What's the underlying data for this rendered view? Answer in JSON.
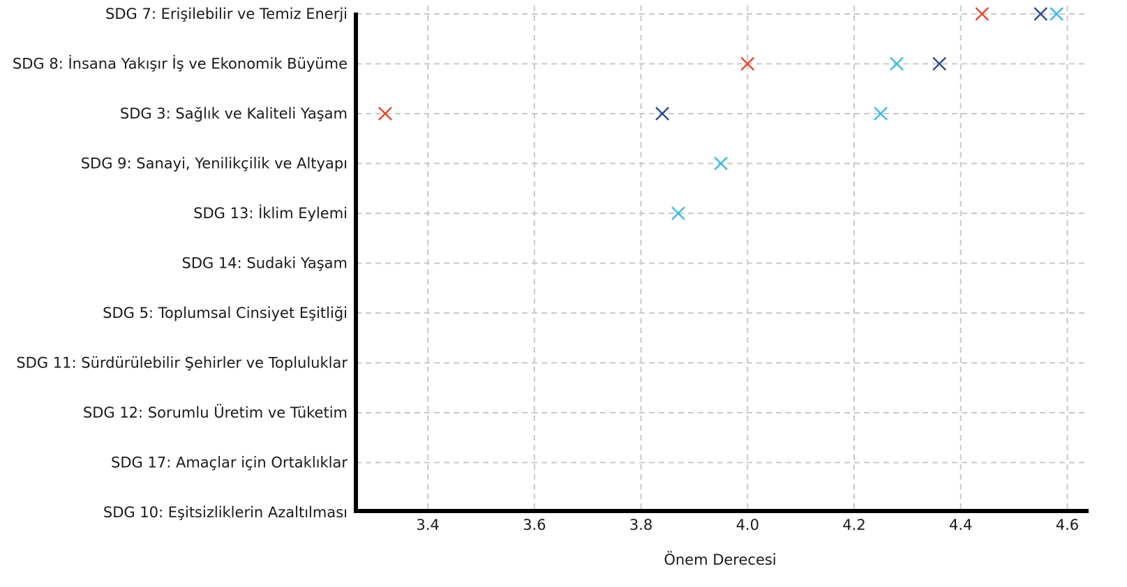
{
  "chart_data": {
    "type": "scatter",
    "title": "",
    "xlabel": "Önem Derecesi",
    "ylabel": "",
    "xlim": [
      3.265,
      4.64
    ],
    "xticks": [
      "3.4",
      "3.6",
      "3.8",
      "4.0",
      "4.2",
      "4.4",
      "4.6"
    ],
    "xtick_values": [
      3.4,
      3.6,
      3.8,
      4.0,
      4.2,
      4.4,
      4.6
    ],
    "grid": true,
    "marker": "x",
    "categories": [
      "SDG 7: Erişilebilir ve Temiz Enerji",
      "SDG 8: İnsana Yakışır İş ve Ekonomik Büyüme",
      "SDG 3: Sağlık ve Kaliteli Yaşam",
      "SDG 9: Sanayi, Yenilikçilik ve Altyapı",
      "SDG 13: İklim Eylemi",
      "SDG 14: Sudaki Yaşam",
      "SDG 5: Toplumsal Cinsiyet Eşitliği",
      "SDG 11: Sürdürülebilir Şehirler ve Topluluklar",
      "SDG 12: Sorumlu Üretim ve Tüketim",
      "SDG 17: Amaçlar için Ortaklıklar",
      "SDG 10: Eşitsizliklerin Azaltılması"
    ],
    "series": [
      {
        "color": "#e8452c",
        "values": [
          4.44,
          4.0,
          3.32,
          null,
          null,
          null,
          null,
          null,
          null,
          null,
          null
        ]
      },
      {
        "color": "#2e4a94",
        "values": [
          4.55,
          4.36,
          3.84,
          null,
          null,
          null,
          null,
          null,
          null,
          null,
          null
        ]
      },
      {
        "color": "#3bbbe6",
        "values": [
          4.58,
          4.28,
          4.25,
          3.95,
          3.87,
          null,
          null,
          null,
          null,
          null,
          null
        ]
      }
    ]
  }
}
